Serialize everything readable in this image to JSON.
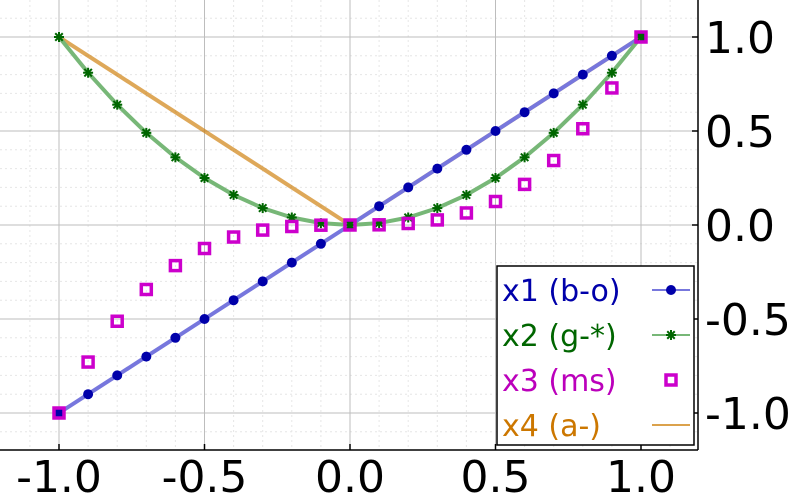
{
  "chart_data": {
    "type": "line",
    "title": "",
    "xlabel": "",
    "ylabel": "",
    "xlim": [
      -1.1,
      1.2
    ],
    "ylim": [
      -1.2,
      1.2
    ],
    "grid": true,
    "x_ticks": [
      -1.0,
      -0.5,
      0.0,
      0.5,
      1.0
    ],
    "x_tick_labels": [
      "-1.0",
      "-0.5",
      "0.0",
      "0.5",
      "1.0"
    ],
    "y_ticks": [
      1.0,
      0.5,
      0.0,
      -0.5,
      -1.0
    ],
    "y_tick_labels": [
      "1.0",
      "0.5",
      "0.0",
      "-0.5",
      "-1.0"
    ],
    "y_axis_side": "right",
    "legend_position": "bottom-right",
    "x": [
      -1.0,
      -0.9,
      -0.8,
      -0.7,
      -0.6,
      -0.5,
      -0.4,
      -0.3,
      -0.2,
      -0.1,
      0.0,
      0.1,
      0.2,
      0.3,
      0.4,
      0.5,
      0.6,
      0.7,
      0.8,
      0.9,
      1.0
    ],
    "series": [
      {
        "name": "x1 (b-o)",
        "style": "line+circle",
        "line_color": "#7777dd",
        "marker_color": "#0000aa",
        "text_color": "#0000aa",
        "values": [
          -1.0,
          -0.9,
          -0.8,
          -0.7,
          -0.6,
          -0.5,
          -0.4,
          -0.3,
          -0.2,
          -0.1,
          0.0,
          0.1,
          0.2,
          0.3,
          0.4,
          0.5,
          0.6,
          0.7,
          0.8,
          0.9,
          1.0
        ]
      },
      {
        "name": "x2 (g-*)",
        "style": "line+star",
        "line_color": "#77b777",
        "marker_color": "#006600",
        "text_color": "#006600",
        "values": [
          1.0,
          0.81,
          0.64,
          0.49,
          0.36,
          0.25,
          0.16,
          0.09,
          0.04,
          0.01,
          0.0,
          0.01,
          0.04,
          0.09,
          0.16,
          0.25,
          0.36,
          0.49,
          0.64,
          0.81,
          1.0
        ]
      },
      {
        "name": "x3 (ms)",
        "style": "square",
        "line_color": "",
        "marker_color": "#cc00cc",
        "text_color": "#bb00bb",
        "values": [
          -1.0,
          -0.729,
          -0.512,
          -0.343,
          -0.216,
          -0.125,
          -0.064,
          -0.027,
          -0.008,
          -0.001,
          0.0,
          0.001,
          0.008,
          0.027,
          0.064,
          0.125,
          0.216,
          0.343,
          0.512,
          0.729,
          1.0
        ]
      },
      {
        "name": "x4 (a-)",
        "style": "line",
        "line_color": "#cc7a00",
        "marker_color": "",
        "text_color": "#cc7700",
        "values": [
          1.0,
          0.9,
          0.8,
          0.7,
          0.6,
          0.5,
          0.4,
          0.3,
          0.2,
          0.1,
          0.0,
          0.1,
          0.2,
          0.3,
          0.4,
          0.5,
          0.6,
          0.7,
          0.8,
          0.9,
          1.0
        ]
      }
    ]
  }
}
